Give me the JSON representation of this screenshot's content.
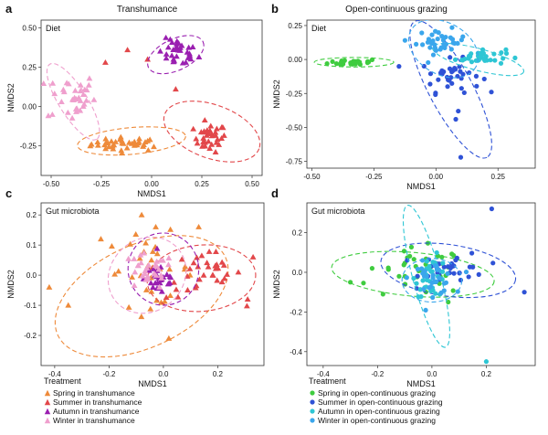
{
  "panel_labels": [
    "a",
    "b",
    "c",
    "d"
  ],
  "titles": {
    "a": "Transhumance",
    "b": "Open-continuous grazing"
  },
  "legend_title": "Treatment",
  "colors": {
    "spring_t": "#ee8a3a",
    "summer_t": "#e2474a",
    "autumn_t": "#9a1fb0",
    "winter_t": "#ef9fcd",
    "spring_o": "#3fcc3f",
    "summer_o": "#2f52d6",
    "autumn_o": "#2ec6d4",
    "winter_o": "#3aa6ec"
  },
  "chart_data": [
    {
      "type": "scatter",
      "panel": "a",
      "subtitle": "Diet",
      "xlabel": "NMDS1",
      "ylabel": "NMDS2",
      "xlim": [
        -0.55,
        0.55
      ],
      "ylim": [
        -0.44,
        0.55
      ],
      "xticks": [
        -0.5,
        -0.25,
        0,
        0.25,
        0.5
      ],
      "xticklabels": [
        "-0.50",
        "-0.25",
        "0.00",
        "0.25",
        "0.50"
      ],
      "yticks": [
        -0.25,
        0,
        0.25,
        0.5
      ],
      "yticklabels": [
        "-0.25",
        "0.00",
        "0.25",
        "0.50"
      ],
      "marker": "triangle",
      "series": [
        {
          "name": "Spring in transhumance",
          "color_key": "spring_t",
          "cx": -0.12,
          "cy": -0.24,
          "sx": 0.09,
          "sy": 0.022,
          "n": 40,
          "ellipse": {
            "cx": -0.1,
            "cy": -0.22,
            "rx": 0.27,
            "ry": 0.085,
            "angle": 5
          }
        },
        {
          "name": "Summer in transhumance",
          "color_key": "summer_t",
          "cx": 0.29,
          "cy": -0.2,
          "sx": 0.04,
          "sy": 0.045,
          "n": 34,
          "extra": [
            [
              -0.23,
              0.28
            ],
            [
              -0.12,
              0.36
            ],
            [
              -0.02,
              0.3
            ],
            [
              0.12,
              0.11
            ]
          ],
          "ellipse": {
            "cx": 0.3,
            "cy": -0.16,
            "rx": 0.25,
            "ry": 0.17,
            "angle": -20
          }
        },
        {
          "name": "Autumn in transhumance",
          "color_key": "autumn_t",
          "cx": 0.13,
          "cy": 0.34,
          "sx": 0.05,
          "sy": 0.045,
          "n": 32,
          "ellipse": {
            "cx": 0.12,
            "cy": 0.33,
            "rx": 0.15,
            "ry": 0.1,
            "angle": 25
          }
        },
        {
          "name": "Winter in transhumance",
          "color_key": "winter_t",
          "cx": -0.4,
          "cy": 0.06,
          "sx": 0.06,
          "sy": 0.08,
          "n": 34,
          "ellipse": {
            "cx": -0.39,
            "cy": 0.03,
            "rx": 0.22,
            "ry": 0.09,
            "angle": -58
          }
        }
      ]
    },
    {
      "type": "scatter",
      "panel": "b",
      "subtitle": "Diet",
      "xlabel": "NMDS1",
      "ylabel": "NMDS2",
      "xlim": [
        -0.52,
        0.4
      ],
      "ylim": [
        -0.8,
        0.29
      ],
      "xticks": [
        -0.5,
        -0.25,
        0,
        0.25
      ],
      "xticklabels": [
        "-0.50",
        "-0.25",
        "0.00",
        "0.25"
      ],
      "yticks": [
        -0.75,
        -0.5,
        -0.25,
        0,
        0.25
      ],
      "yticklabels": [
        "-0.75",
        "-0.50",
        "-0.25",
        "0.00",
        "0.25"
      ],
      "marker": "circle",
      "series": [
        {
          "name": "Spring in open-continuous grazing",
          "color_key": "spring_o",
          "cx": -0.33,
          "cy": -0.02,
          "sx": 0.05,
          "sy": 0.012,
          "n": 30,
          "ellipse": {
            "cx": -0.33,
            "cy": -0.02,
            "rx": 0.16,
            "ry": 0.035,
            "angle": 0
          }
        },
        {
          "name": "Summer in open-continuous grazing",
          "color_key": "summer_o",
          "cx": 0.06,
          "cy": -0.12,
          "sx": 0.06,
          "sy": 0.06,
          "n": 36,
          "extra": [
            [
              0.1,
              -0.72
            ],
            [
              0.09,
              -0.38
            ],
            [
              0.08,
              -0.44
            ]
          ],
          "ellipse": {
            "cx": 0.06,
            "cy": -0.22,
            "rx": 0.31,
            "ry": 0.16,
            "angle": -62
          }
        },
        {
          "name": "Autumn in open-continuous grazing",
          "color_key": "autumn_o",
          "cx": 0.18,
          "cy": 0.02,
          "sx": 0.05,
          "sy": 0.03,
          "n": 36,
          "ellipse": {
            "cx": 0.17,
            "cy": 0.0,
            "rx": 0.19,
            "ry": 0.08,
            "angle": -15
          }
        },
        {
          "name": "Winter in open-continuous grazing",
          "color_key": "winter_o",
          "cx": 0.02,
          "cy": 0.13,
          "sx": 0.05,
          "sy": 0.045,
          "n": 36,
          "ellipse": {
            "cx": 0.03,
            "cy": 0.08,
            "rx": 0.15,
            "ry": 0.19,
            "angle": -30
          }
        }
      ]
    },
    {
      "type": "scatter",
      "panel": "c",
      "subtitle": "Gut microbiota",
      "xlabel": "NMDS1",
      "ylabel": "NMDS2",
      "xlim": [
        -0.45,
        0.37
      ],
      "ylim": [
        -0.3,
        0.24
      ],
      "xticks": [
        -0.4,
        -0.2,
        0,
        0.2
      ],
      "xticklabels": [
        "-0.4",
        "-0.2",
        "0.0",
        "0.2"
      ],
      "yticks": [
        -0.2,
        -0.1,
        0,
        0.1,
        0.2
      ],
      "yticklabels": [
        "-0.2",
        "-0.1",
        "0.0",
        "0.1",
        "0.2"
      ],
      "marker": "triangle",
      "series": [
        {
          "name": "Spring in transhumance",
          "color_key": "spring_t",
          "cx": -0.05,
          "cy": 0.02,
          "sx": 0.08,
          "sy": 0.06,
          "n": 34,
          "extra": [
            [
              -0.42,
              -0.04
            ],
            [
              -0.35,
              -0.1
            ],
            [
              0.02,
              -0.21
            ],
            [
              -0.23,
              0.12
            ],
            [
              -0.08,
              0.2
            ],
            [
              0.13,
              0.16
            ]
          ],
          "ellipse": {
            "cx": -0.08,
            "cy": -0.07,
            "rx": 0.34,
            "ry": 0.17,
            "angle": 25
          }
        },
        {
          "name": "Summer in transhumance",
          "color_key": "summer_t",
          "cx": 0.15,
          "cy": 0.0,
          "sx": 0.07,
          "sy": 0.04,
          "n": 34,
          "extra": [
            [
              0.31,
              -0.08
            ],
            [
              0.33,
              0.06
            ]
          ],
          "ellipse": {
            "cx": 0.14,
            "cy": -0.01,
            "rx": 0.2,
            "ry": 0.11,
            "angle": 5
          }
        },
        {
          "name": "Autumn in transhumance",
          "color_key": "autumn_t",
          "cx": -0.01,
          "cy": -0.01,
          "sx": 0.03,
          "sy": 0.03,
          "n": 30,
          "ellipse": {
            "cx": 0.0,
            "cy": 0.02,
            "rx": 0.13,
            "ry": 0.12,
            "angle": 10
          }
        },
        {
          "name": "Winter in transhumance",
          "color_key": "winter_t",
          "cx": -0.06,
          "cy": 0.01,
          "sx": 0.05,
          "sy": 0.03,
          "n": 30,
          "ellipse": {
            "cx": -0.06,
            "cy": 0.0,
            "rx": 0.15,
            "ry": 0.12,
            "angle": 40
          }
        }
      ]
    },
    {
      "type": "scatter",
      "panel": "d",
      "subtitle": "Gut microbiota",
      "xlabel": "NMDS1",
      "ylabel": "NMDS2",
      "xlim": [
        -0.46,
        0.38
      ],
      "ylim": [
        -0.47,
        0.35
      ],
      "xticks": [
        -0.4,
        -0.2,
        0,
        0.2
      ],
      "xticklabels": [
        "-0.4",
        "-0.2",
        "0.0",
        "0.2"
      ],
      "yticks": [
        -0.4,
        -0.2,
        0,
        0.2
      ],
      "yticklabels": [
        "-0.4",
        "-0.2",
        "0.0",
        "0.2"
      ],
      "marker": "circle",
      "series": [
        {
          "name": "Spring in open-continuous grazing",
          "color_key": "spring_o",
          "cx": -0.04,
          "cy": 0.0,
          "sx": 0.08,
          "sy": 0.06,
          "n": 34,
          "extra": [
            [
              -0.3,
              -0.05
            ],
            [
              -0.22,
              0.02
            ],
            [
              -0.18,
              -0.11
            ],
            [
              0.06,
              -0.15
            ]
          ],
          "ellipse": {
            "cx": -0.07,
            "cy": -0.01,
            "rx": 0.3,
            "ry": 0.11,
            "angle": -5
          }
        },
        {
          "name": "Summer in open-continuous grazing",
          "color_key": "summer_o",
          "cx": 0.08,
          "cy": 0.02,
          "sx": 0.06,
          "sy": 0.04,
          "n": 34,
          "extra": [
            [
              0.22,
              0.32
            ],
            [
              0.34,
              -0.1
            ]
          ],
          "ellipse": {
            "cx": 0.06,
            "cy": 0.01,
            "rx": 0.25,
            "ry": 0.13,
            "angle": -8
          }
        },
        {
          "name": "Autumn in open-continuous grazing",
          "color_key": "autumn_o",
          "cx": 0.0,
          "cy": -0.02,
          "sx": 0.03,
          "sy": 0.05,
          "n": 34,
          "extra": [
            [
              0.2,
              -0.45
            ]
          ],
          "ellipse": {
            "cx": -0.02,
            "cy": -0.02,
            "rx": 0.27,
            "ry": 0.07,
            "angle": -75
          }
        },
        {
          "name": "Winter in open-continuous grazing",
          "color_key": "winter_o",
          "cx": 0.0,
          "cy": -0.03,
          "sx": 0.04,
          "sy": 0.04,
          "n": 34,
          "ellipse": {
            "cx": 0.0,
            "cy": -0.04,
            "rx": 0.11,
            "ry": 0.11,
            "angle": 0
          }
        }
      ]
    }
  ]
}
